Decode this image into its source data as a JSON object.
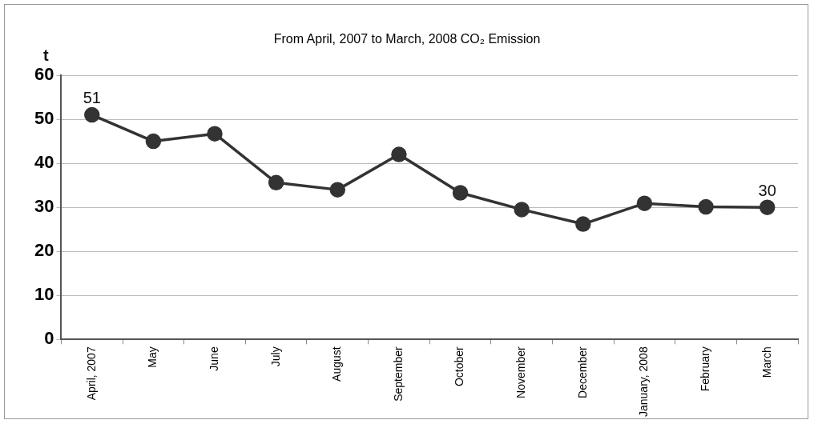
{
  "chart_data": {
    "type": "line",
    "title": "From April, 2007 to March, 2008 CO₂ Emission",
    "ylabel": "t",
    "categories": [
      "April, 2007",
      "May",
      "June",
      "July",
      "August",
      "September",
      "October",
      "November",
      "December",
      "January, 2008",
      "February",
      "March"
    ],
    "series": [
      {
        "color": "#333333",
        "values": [
          51,
          45,
          46.7,
          35.6,
          34,
          42,
          33.3,
          29.5,
          26.2,
          30.9,
          30.1,
          30
        ],
        "value_labels": [
          "51",
          null,
          null,
          null,
          null,
          null,
          null,
          null,
          null,
          null,
          null,
          "30"
        ]
      }
    ],
    "ylim": [
      0,
      60
    ],
    "yticks": [
      0,
      10,
      20,
      30,
      40,
      50,
      60
    ],
    "grid": "y",
    "legend": false,
    "marker": "circle",
    "line_style": "solid"
  }
}
